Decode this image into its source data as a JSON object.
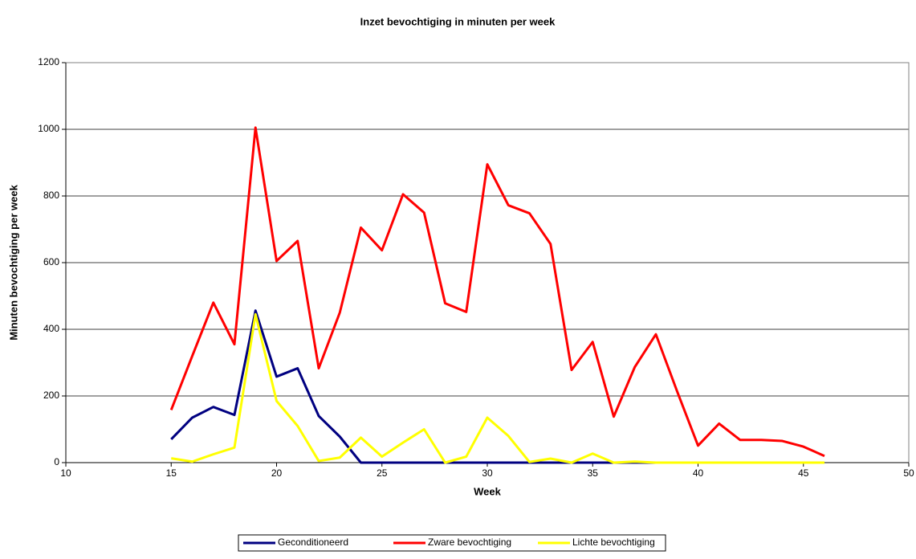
{
  "chart_data": {
    "type": "line",
    "title": "Inzet bevochtiging in minuten per week",
    "x_label": "Week",
    "y_label": "Minuten bevochtiging per week",
    "x": [
      15,
      16,
      17,
      18,
      19,
      20,
      21,
      22,
      23,
      24,
      25,
      26,
      27,
      28,
      29,
      30,
      31,
      32,
      33,
      34,
      35,
      36,
      37,
      38,
      39,
      40,
      41,
      42,
      43,
      44,
      45,
      46
    ],
    "series": [
      {
        "name": "Geconditioneerd",
        "color": "#000080",
        "values": [
          70,
          135,
          167,
          143,
          456,
          258,
          283,
          140,
          78,
          0,
          0,
          0,
          0,
          0,
          0,
          0,
          0,
          0,
          0,
          0,
          0,
          0,
          0,
          0,
          0,
          0,
          0,
          0,
          0,
          0,
          0,
          0
        ]
      },
      {
        "name": "Zware bevochtiging",
        "color": "#ff0000",
        "values": [
          158,
          320,
          480,
          355,
          1005,
          605,
          665,
          283,
          450,
          705,
          637,
          805,
          750,
          478,
          452,
          895,
          772,
          748,
          656,
          278,
          362,
          138,
          287,
          385,
          215,
          51,
          117,
          68,
          68,
          65,
          48,
          20
        ]
      },
      {
        "name": "Lichte bevochtiging",
        "color": "#ffff00",
        "values": [
          13,
          3,
          25,
          45,
          445,
          185,
          110,
          5,
          15,
          75,
          18,
          60,
          100,
          0,
          18,
          135,
          80,
          2,
          12,
          0,
          27,
          0,
          3,
          0,
          0,
          0,
          0,
          0,
          0,
          0,
          0,
          0
        ]
      }
    ],
    "xlim": [
      10,
      50
    ],
    "xticks": [
      10,
      15,
      20,
      25,
      30,
      35,
      40,
      45,
      50
    ],
    "ylim": [
      0,
      1200
    ],
    "yticks": [
      0,
      200,
      400,
      600,
      800,
      1000,
      1200
    ],
    "grid": true,
    "legend": "bottom"
  }
}
